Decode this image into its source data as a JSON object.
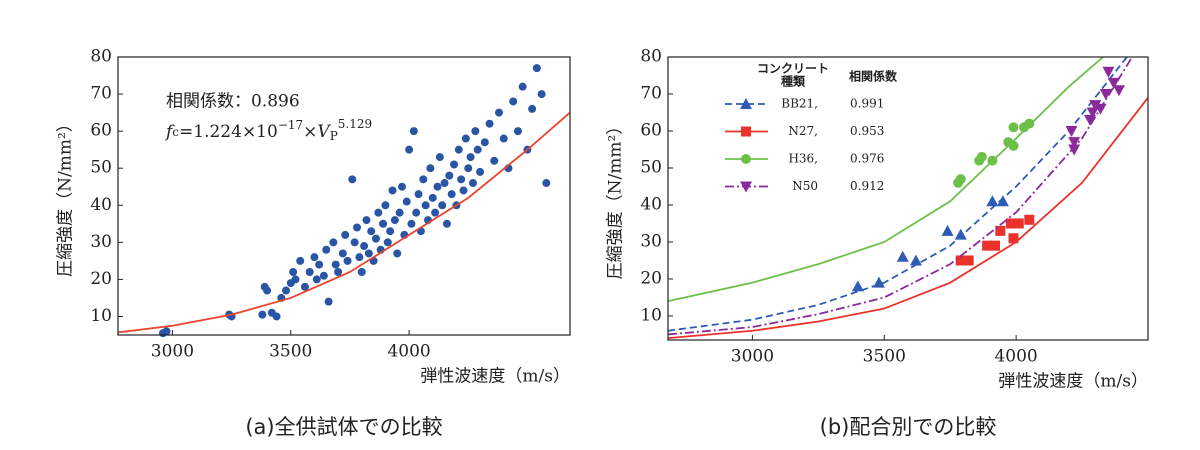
{
  "chart_data": [
    {
      "type": "scatter",
      "caption": "(a)全供試体での比較",
      "x_label": "弾性波速度（m/s）",
      "y_label": "圧縮強度（N/mm²）",
      "annotation": "相関係数：0.896",
      "formula": {
        "f": "f",
        "sub": "c",
        "coef": "=1.224×10",
        "exp": "−17",
        "times": "×",
        "v": "V",
        "vsub": "P",
        "power": "5.129"
      },
      "xlim": [
        2770,
        4680
      ],
      "ylim": [
        5,
        80
      ],
      "xticks": [
        3000,
        3500,
        4000
      ],
      "yticks": [
        10,
        20,
        30,
        40,
        50,
        60,
        70,
        80
      ],
      "series": [
        {
          "color": "#2a55a5",
          "marker": "circle",
          "x": [
            2960,
            2975,
            3240,
            3250,
            3380,
            3390,
            3400,
            3420,
            3440,
            3460,
            3480,
            3500,
            3510,
            3520,
            3540,
            3560,
            3580,
            3600,
            3610,
            3620,
            3640,
            3650,
            3660,
            3680,
            3690,
            3700,
            3720,
            3730,
            3740,
            3760,
            3770,
            3780,
            3790,
            3800,
            3810,
            3820,
            3830,
            3840,
            3850,
            3860,
            3870,
            3880,
            3890,
            3900,
            3910,
            3920,
            3930,
            3940,
            3950,
            3960,
            3970,
            3980,
            3990,
            4000,
            4010,
            4020,
            4030,
            4040,
            4050,
            4060,
            4070,
            4080,
            4090,
            4100,
            4110,
            4120,
            4130,
            4140,
            4150,
            4160,
            4170,
            4180,
            4190,
            4200,
            4210,
            4220,
            4230,
            4240,
            4250,
            4260,
            4270,
            4280,
            4290,
            4300,
            4320,
            4340,
            4360,
            4380,
            4400,
            4420,
            4440,
            4460,
            4480,
            4500,
            4520,
            4540,
            4560,
            4580
          ],
          "values": [
            5.5,
            6,
            10.5,
            10,
            10.5,
            18,
            17,
            11,
            10,
            15,
            17,
            19,
            22,
            20,
            25,
            18,
            22,
            26,
            20,
            24,
            21,
            28,
            14,
            30,
            24,
            22,
            27,
            32,
            25,
            47,
            30,
            34,
            26,
            22,
            29,
            36,
            27,
            33,
            25,
            31,
            38,
            28,
            35,
            40,
            30,
            33,
            44,
            36,
            27,
            38,
            45,
            32,
            41,
            55,
            35,
            60,
            38,
            43,
            33,
            47,
            40,
            36,
            50,
            42,
            38,
            45,
            53,
            40,
            46,
            35,
            48,
            43,
            51,
            40,
            55,
            47,
            44,
            58,
            50,
            53,
            46,
            60,
            55,
            49,
            57,
            62,
            52,
            65,
            58,
            50,
            68,
            60,
            72,
            55,
            66,
            77,
            70,
            46
          ]
        }
      ],
      "fit": {
        "color": "#e8452c",
        "x": [
          2770,
          3000,
          3250,
          3500,
          3750,
          4000,
          4250,
          4500,
          4680
        ],
        "values": [
          5.7,
          7.5,
          10.5,
          15,
          22,
          32,
          42,
          55,
          65
        ]
      }
    },
    {
      "type": "scatter",
      "caption": "(b)配合別での比較",
      "x_label": "弾性波速度（m/s）",
      "y_label": "圧縮強度（N/mm²）",
      "legend_header": [
        "コンクリート",
        "種類"
      ],
      "legend_r_header": "相関係数",
      "xlim": [
        2680,
        4500
      ],
      "ylim": [
        3.5,
        80
      ],
      "xticks": [
        3000,
        3500,
        4000
      ],
      "yticks": [
        10,
        20,
        30,
        40,
        50,
        60,
        70,
        80
      ],
      "series": [
        {
          "name": "BB21,",
          "r": 0.991,
          "color": "#2e5bb5",
          "marker": "triangle-up",
          "dash": "7 4",
          "x": [
            3400,
            3480,
            3570,
            3620,
            3740,
            3790,
            3910,
            3950
          ],
          "values": [
            18,
            19,
            26,
            25,
            33,
            32,
            41,
            41
          ],
          "fit": {
            "x": [
              2680,
              3000,
              3250,
              3500,
              3750,
              4000,
              4200,
              4420
            ],
            "values": [
              6,
              9,
              13,
              19,
              29,
              45,
              60,
              80
            ]
          }
        },
        {
          "name": "N27,",
          "r": 0.953,
          "color": "#e8322a",
          "marker": "square",
          "dash": "",
          "x": [
            3790,
            3820,
            3890,
            3920,
            3940,
            3980,
            3990,
            4010,
            4050
          ],
          "values": [
            25,
            25,
            29,
            29,
            33,
            35,
            31,
            35,
            36
          ],
          "fit": {
            "x": [
              2680,
              3000,
              3250,
              3500,
              3750,
              4000,
              4250,
              4500
            ],
            "values": [
              4,
              6,
              8.5,
              12,
              19,
              30,
              46,
              69
            ]
          }
        },
        {
          "name": "H36,",
          "r": 0.976,
          "color": "#6cc04a",
          "marker": "circle",
          "dash": "",
          "x": [
            3780,
            3790,
            3860,
            3870,
            3910,
            3970,
            3990,
            3990,
            4030,
            4050
          ],
          "values": [
            46,
            47,
            52,
            53,
            52,
            57,
            56,
            61,
            61,
            62
          ],
          "fit": {
            "x": [
              2680,
              3000,
              3250,
              3500,
              3750,
              4000,
              4200,
              4330
            ],
            "values": [
              14,
              19,
              24,
              30,
              41,
              58,
              72,
              80
            ]
          }
        },
        {
          "name": "N50",
          "r": 0.912,
          "color": "#8a2a9a",
          "marker": "triangle-down",
          "dash": "9 3 2 3",
          "x": [
            4210,
            4220,
            4220,
            4280,
            4290,
            4300,
            4320,
            4340,
            4350,
            4370,
            4390
          ],
          "values": [
            60,
            57,
            55,
            63,
            65,
            67,
            66,
            70,
            76,
            73,
            71
          ],
          "fit": {
            "x": [
              2680,
              3000,
              3250,
              3500,
              3750,
              4000,
              4250,
              4440
            ],
            "values": [
              5,
              7,
              10.5,
              15,
              24,
              38,
              58,
              80
            ]
          }
        }
      ]
    }
  ]
}
